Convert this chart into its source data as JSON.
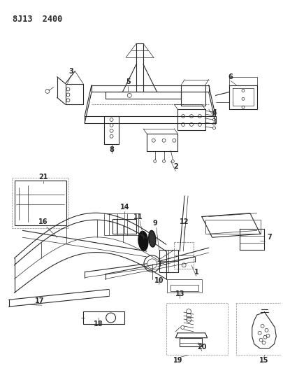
{
  "title": "8J13 2400",
  "bg_color": "#ffffff",
  "fig_width": 4.05,
  "fig_height": 5.33,
  "dpi": 100,
  "line_color": "#2a2a2a",
  "label_fontsize": 7.0
}
